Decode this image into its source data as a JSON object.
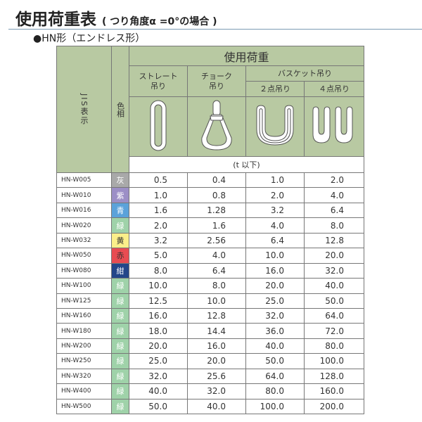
{
  "title": "使用荷重表",
  "subtitle": "( つり角度α =0°の場合 )",
  "section": "●HN形（エンドレス形）",
  "header": {
    "jis": "JIS表示",
    "color": "色相",
    "load": "使用荷重",
    "straight": "ストレート吊り",
    "choke": "チョーク吊り",
    "basket": "バスケット吊り",
    "two_point": "２点吊り",
    "four_point": "４点吊り",
    "unit": "(t 以下)"
  },
  "icons": [
    "straight-sling-icon",
    "choke-sling-icon",
    "basket-2point-icon",
    "basket-4point-icon"
  ],
  "rows": [
    {
      "code": "HN-W005",
      "color": "灰",
      "bg": "#a9a9a9",
      "fg": "#ffffff",
      "v": [
        "0.5",
        "0.4",
        "1.0",
        "2.0"
      ]
    },
    {
      "code": "HN-W010",
      "color": "紫",
      "bg": "#9c8fc6",
      "fg": "#ffffff",
      "v": [
        "1.0",
        "0.8",
        "2.0",
        "4.0"
      ]
    },
    {
      "code": "HN-W016",
      "color": "青",
      "bg": "#5ba2da",
      "fg": "#ffffff",
      "v": [
        "1.6",
        "1.28",
        "3.2",
        "6.4"
      ]
    },
    {
      "code": "HN-W020",
      "color": "緑",
      "bg": "#9fd2a9",
      "fg": "#ffffff",
      "v": [
        "2.0",
        "1.6",
        "4.0",
        "8.0"
      ]
    },
    {
      "code": "HN-W032",
      "color": "黄",
      "bg": "#fbef8a",
      "fg": "#333333",
      "v": [
        "3.2",
        "2.56",
        "6.4",
        "12.8"
      ]
    },
    {
      "code": "HN-W050",
      "color": "赤",
      "bg": "#e84c52",
      "fg": "#333333",
      "v": [
        "5.0",
        "4.0",
        "10.0",
        "20.0"
      ]
    },
    {
      "code": "HN-W080",
      "color": "紺",
      "bg": "#244689",
      "fg": "#ffffff",
      "v": [
        "8.0",
        "6.4",
        "16.0",
        "32.0"
      ]
    },
    {
      "code": "HN-W100",
      "color": "緑",
      "bg": "#9fd2a9",
      "fg": "#ffffff",
      "v": [
        "10.0",
        "8.0",
        "20.0",
        "40.0"
      ]
    },
    {
      "code": "HN-W125",
      "color": "緑",
      "bg": "#9fd2a9",
      "fg": "#ffffff",
      "v": [
        "12.5",
        "10.0",
        "25.0",
        "50.0"
      ]
    },
    {
      "code": "HN-W160",
      "color": "緑",
      "bg": "#9fd2a9",
      "fg": "#ffffff",
      "v": [
        "16.0",
        "12.8",
        "32.0",
        "64.0"
      ]
    },
    {
      "code": "HN-W180",
      "color": "緑",
      "bg": "#9fd2a9",
      "fg": "#ffffff",
      "v": [
        "18.0",
        "14.4",
        "36.0",
        "72.0"
      ]
    },
    {
      "code": "HN-W200",
      "color": "緑",
      "bg": "#9fd2a9",
      "fg": "#ffffff",
      "v": [
        "20.0",
        "16.0",
        "40.0",
        "80.0"
      ]
    },
    {
      "code": "HN-W250",
      "color": "緑",
      "bg": "#9fd2a9",
      "fg": "#ffffff",
      "v": [
        "25.0",
        "20.0",
        "50.0",
        "100.0"
      ]
    },
    {
      "code": "HN-W320",
      "color": "緑",
      "bg": "#9fd2a9",
      "fg": "#ffffff",
      "v": [
        "32.0",
        "25.6",
        "64.0",
        "128.0"
      ]
    },
    {
      "code": "HN-W400",
      "color": "緑",
      "bg": "#9fd2a9",
      "fg": "#ffffff",
      "v": [
        "40.0",
        "32.0",
        "80.0",
        "160.0"
      ]
    },
    {
      "code": "HN-W500",
      "color": "緑",
      "bg": "#9fd2a9",
      "fg": "#ffffff",
      "v": [
        "50.0",
        "40.0",
        "100.0",
        "200.0"
      ]
    }
  ]
}
